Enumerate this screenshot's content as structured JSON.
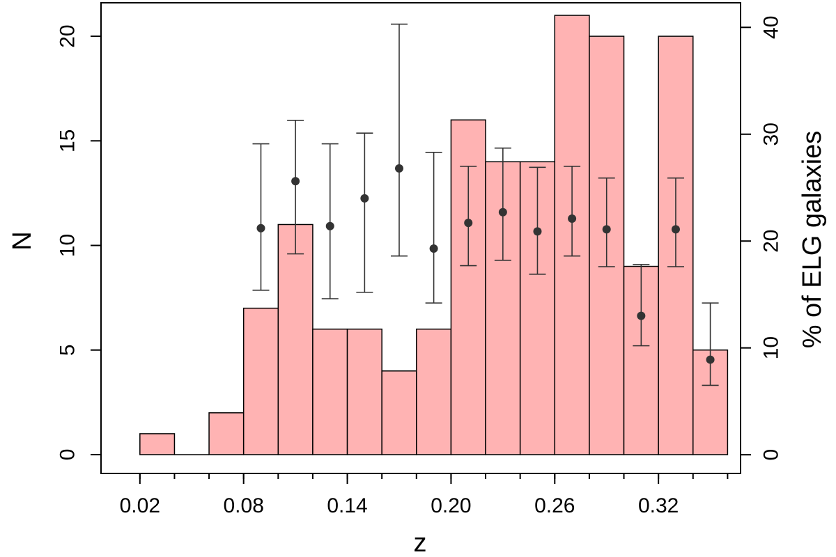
{
  "chart_data": {
    "type": "bar",
    "title": "",
    "xlabel": "z",
    "ylabel": "N",
    "y2label": "% of ELG galaxies",
    "xlim": [
      -0.0025,
      0.3675
    ],
    "ylim": [
      -0.9,
      21.6
    ],
    "y2lim": [
      -1.75,
      42.3
    ],
    "x_ticks": [
      0.02,
      0.08,
      0.14,
      0.2,
      0.26,
      0.32
    ],
    "x_tick_labels": [
      "0.02",
      "0.08",
      "0.14",
      "0.20",
      "0.26",
      "0.32"
    ],
    "y_ticks": [
      0,
      5,
      10,
      15,
      20
    ],
    "y_tick_labels": [
      "0",
      "5",
      "10",
      "15",
      "20"
    ],
    "y2_ticks": [
      0,
      10,
      20,
      30,
      40
    ],
    "y2_tick_labels": [
      "0",
      "10",
      "20",
      "30",
      "40"
    ],
    "bin_edges": [
      0.02,
      0.04,
      0.06,
      0.08,
      0.1,
      0.12,
      0.14,
      0.16,
      0.18,
      0.2,
      0.22,
      0.24,
      0.26,
      0.28,
      0.3,
      0.32,
      0.34,
      0.36
    ],
    "histogram": {
      "name": "N",
      "axis": "left",
      "color": "#ffb3b3",
      "bins": [
        {
          "x0": 0.02,
          "x1": 0.04,
          "value": 1
        },
        {
          "x0": 0.04,
          "x1": 0.06,
          "value": 0
        },
        {
          "x0": 0.06,
          "x1": 0.08,
          "value": 2
        },
        {
          "x0": 0.08,
          "x1": 0.1,
          "value": 7
        },
        {
          "x0": 0.1,
          "x1": 0.12,
          "value": 11
        },
        {
          "x0": 0.12,
          "x1": 0.14,
          "value": 6
        },
        {
          "x0": 0.14,
          "x1": 0.16,
          "value": 6
        },
        {
          "x0": 0.16,
          "x1": 0.18,
          "value": 4
        },
        {
          "x0": 0.18,
          "x1": 0.2,
          "value": 6
        },
        {
          "x0": 0.2,
          "x1": 0.22,
          "value": 16
        },
        {
          "x0": 0.22,
          "x1": 0.24,
          "value": 14
        },
        {
          "x0": 0.24,
          "x1": 0.26,
          "value": 14
        },
        {
          "x0": 0.26,
          "x1": 0.28,
          "value": 21
        },
        {
          "x0": 0.28,
          "x1": 0.3,
          "value": 20
        },
        {
          "x0": 0.3,
          "x1": 0.32,
          "value": 9
        },
        {
          "x0": 0.32,
          "x1": 0.34,
          "value": 20
        },
        {
          "x0": 0.34,
          "x1": 0.36,
          "value": 5
        }
      ]
    },
    "points": {
      "name": "% of ELG galaxies",
      "axis": "right",
      "color": "#333333",
      "data": [
        {
          "x": 0.09,
          "y": 21.2,
          "low": 15.4,
          "high": 29.1
        },
        {
          "x": 0.11,
          "y": 25.6,
          "low": 18.8,
          "high": 31.3
        },
        {
          "x": 0.13,
          "y": 21.4,
          "low": 14.6,
          "high": 29.1
        },
        {
          "x": 0.15,
          "y": 24.0,
          "low": 15.2,
          "high": 30.1
        },
        {
          "x": 0.17,
          "y": 26.8,
          "low": 18.6,
          "high": 40.3
        },
        {
          "x": 0.19,
          "y": 19.3,
          "low": 14.2,
          "high": 28.3
        },
        {
          "x": 0.21,
          "y": 21.7,
          "low": 17.7,
          "high": 27.0
        },
        {
          "x": 0.23,
          "y": 22.7,
          "low": 18.2,
          "high": 28.7
        },
        {
          "x": 0.25,
          "y": 20.9,
          "low": 16.9,
          "high": 26.9
        },
        {
          "x": 0.27,
          "y": 22.1,
          "low": 18.6,
          "high": 27.0
        },
        {
          "x": 0.29,
          "y": 21.1,
          "low": 17.6,
          "high": 25.9
        },
        {
          "x": 0.31,
          "y": 13.0,
          "low": 10.2,
          "high": 17.8
        },
        {
          "x": 0.33,
          "y": 21.1,
          "low": 17.6,
          "high": 25.9
        },
        {
          "x": 0.35,
          "y": 8.9,
          "low": 6.5,
          "high": 14.2
        }
      ]
    },
    "grid": false,
    "legend": "none"
  }
}
